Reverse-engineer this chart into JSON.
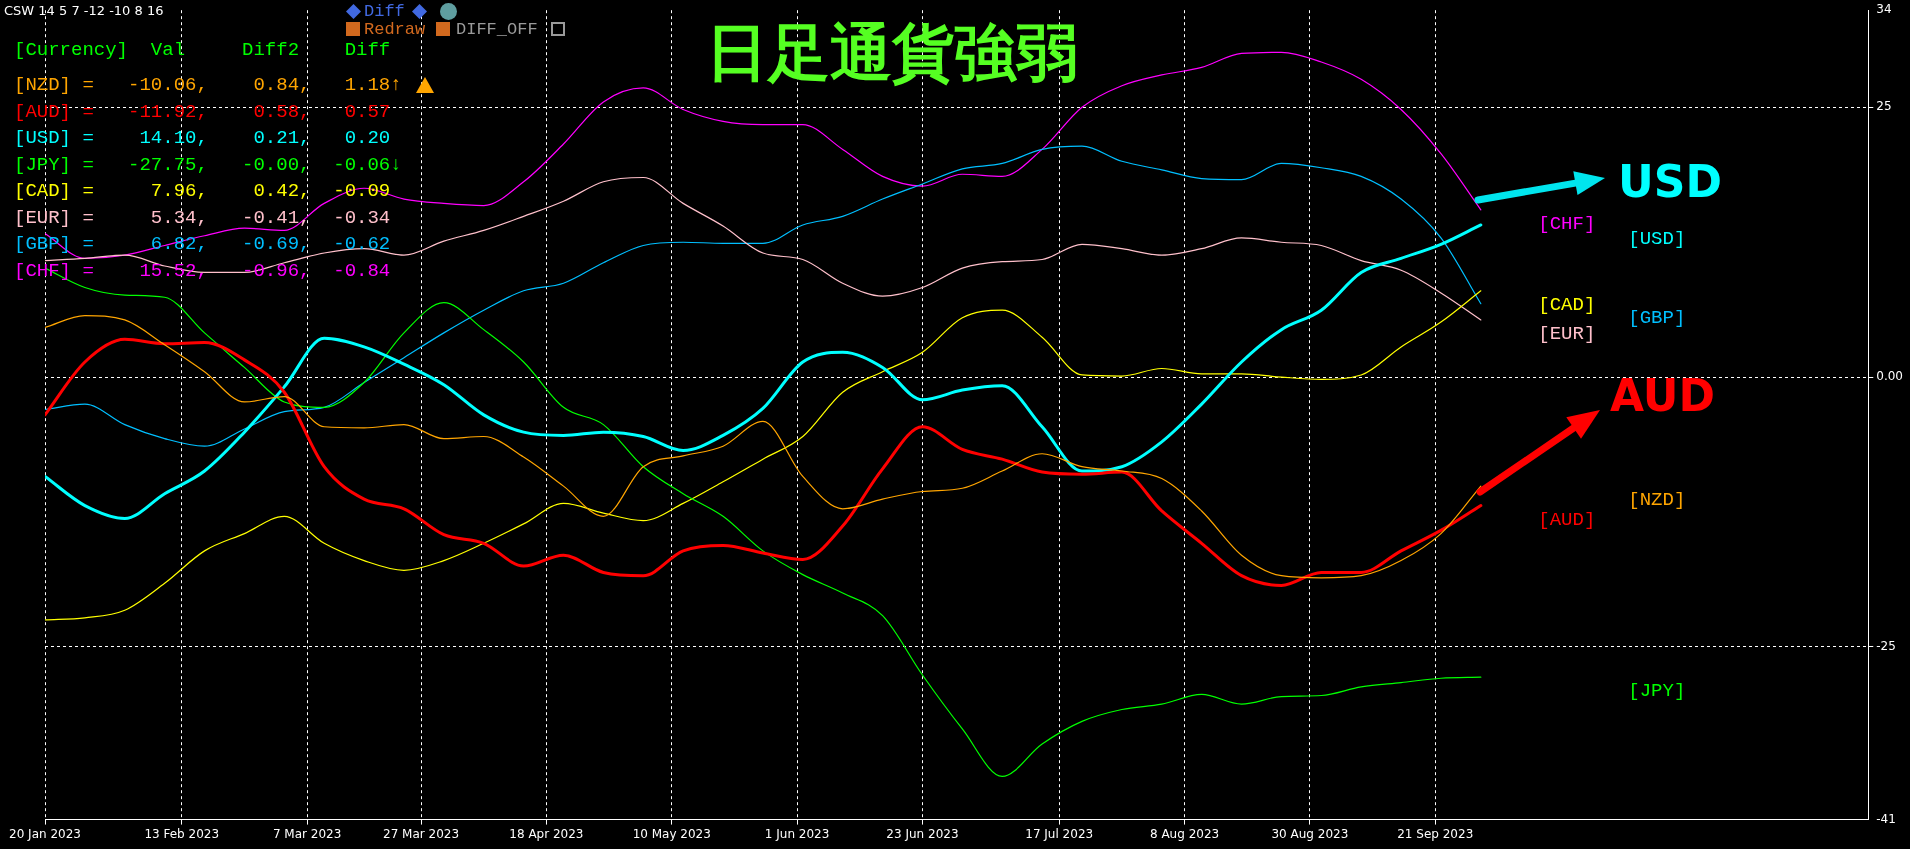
{
  "chart_data": {
    "type": "line",
    "title": "日足通貨強弱",
    "x": [
      "2023-01-20",
      "2023-01-27",
      "2023-02-03",
      "2023-02-10",
      "2023-02-17",
      "2023-02-24",
      "2023-03-03",
      "2023-03-10",
      "2023-03-17",
      "2023-03-24",
      "2023-03-31",
      "2023-04-07",
      "2023-04-14",
      "2023-04-21",
      "2023-04-28",
      "2023-05-05",
      "2023-05-12",
      "2023-05-19",
      "2023-05-26",
      "2023-06-02",
      "2023-06-09",
      "2023-06-16",
      "2023-06-23",
      "2023-06-30",
      "2023-07-07",
      "2023-07-14",
      "2023-07-21",
      "2023-07-28",
      "2023-08-04",
      "2023-08-11",
      "2023-08-18",
      "2023-08-25",
      "2023-09-01",
      "2023-09-08",
      "2023-09-15",
      "2023-09-22",
      "2023-09-29"
    ],
    "xlim": [
      "2023-01-20",
      "2023-12-06"
    ],
    "xticks": [
      {
        "value": "2023-01-20",
        "label": "20 Jan 2023"
      },
      {
        "value": "2023-02-13",
        "label": "13 Feb 2023"
      },
      {
        "value": "2023-03-07",
        "label": "7 Mar 2023"
      },
      {
        "value": "2023-03-27",
        "label": "27 Mar 2023"
      },
      {
        "value": "2023-04-18",
        "label": "18 Apr 2023"
      },
      {
        "value": "2023-05-10",
        "label": "10 May 2023"
      },
      {
        "value": "2023-06-01",
        "label": "1 Jun 2023"
      },
      {
        "value": "2023-06-23",
        "label": "23 Jun 2023"
      },
      {
        "value": "2023-07-17",
        "label": "17 Jul 2023"
      },
      {
        "value": "2023-08-08",
        "label": "8 Aug 2023"
      },
      {
        "value": "2023-08-30",
        "label": "30 Aug 2023"
      },
      {
        "value": "2023-09-21",
        "label": "21 Sep 2023"
      }
    ],
    "ylim": [
      -41,
      34
    ],
    "yticks": [
      -41,
      -25,
      {
        "value": 0,
        "label": "0.00"
      },
      25,
      34
    ],
    "grid": true,
    "legend": "right",
    "marker": "none",
    "line_style": "solid",
    "annotations": [
      "CSW 14 5 7 -12 -10 8 16",
      "[Currency]  Val     Diff2    Diff",
      "[NZD] =   -10.06,    0.84,   1.18↑",
      "[AUD] =   -11.92,    0.58,   0.57",
      "[USD] =    14.10,    0.21,   0.20",
      "[JPY] =   -27.75,   -0.00,  -0.06↓",
      "[CAD] =     7.96,    0.42,  -0.09",
      "[EUR] =     5.34,   -0.41,  -0.34",
      "[GBP] =     6.82,   -0.69,  -0.62",
      "[CHF] =    15.52,   -0.96,  -0.84",
      "Diff",
      "Redraw",
      "DIFF_OFF",
      "USD",
      "AUD"
    ],
    "series": [
      {
        "name": "[NZD]",
        "color": "#ffa500",
        "values": [
          4.6,
          5.7,
          5.3,
          3.0,
          0.5,
          -2.3,
          -1.8,
          -4.6,
          -4.7,
          -4.4,
          -5.7,
          -5.5,
          -7.4,
          -10.1,
          -12.9,
          -8.3,
          -7.3,
          -6.4,
          -4.1,
          -9.2,
          -12.2,
          -11.3,
          -10.6,
          -10.3,
          -8.7,
          -7.1,
          -8.3,
          -8.7,
          -9.4,
          -12.4,
          -16.5,
          -18.4,
          -18.6,
          -18.4,
          -17.0,
          -14.5,
          -10.1
        ]
      },
      {
        "name": "[AUD]",
        "color": "#ff0000",
        "values": [
          -3.5,
          1.4,
          3.5,
          3.1,
          3.2,
          1.6,
          -1.4,
          -8.3,
          -11.3,
          -12.2,
          -14.6,
          -15.4,
          -17.5,
          -16.5,
          -18.1,
          -18.4,
          -16.1,
          -15.6,
          -16.3,
          -16.9,
          -13.8,
          -8.5,
          -4.6,
          -6.7,
          -7.6,
          -8.8,
          -9.0,
          -8.8,
          -12.4,
          -15.4,
          -18.4,
          -19.3,
          -18.1,
          -18.1,
          -16.1,
          -14.2,
          -11.9
        ]
      },
      {
        "name": "[USD]",
        "color": "#00ffff",
        "values": [
          -9.2,
          -11.9,
          -13.1,
          -10.8,
          -8.7,
          -5.1,
          -0.9,
          3.6,
          2.8,
          1.2,
          -0.7,
          -3.5,
          -5.1,
          -5.4,
          -5.1,
          -5.5,
          -6.8,
          -5.4,
          -2.9,
          1.4,
          2.3,
          0.9,
          -2.1,
          -1.2,
          -0.8,
          -4.6,
          -8.7,
          -8.3,
          -6.0,
          -2.5,
          1.4,
          4.4,
          6.2,
          9.7,
          11.0,
          12.3,
          14.1
        ]
      },
      {
        "name": "[JPY]",
        "color": "#00ff00",
        "values": [
          10.1,
          8.3,
          7.6,
          7.4,
          4.1,
          0.9,
          -2.3,
          -2.8,
          -0.5,
          4.1,
          6.9,
          4.4,
          1.4,
          -2.8,
          -4.4,
          -8.3,
          -10.8,
          -12.9,
          -16.1,
          -18.3,
          -20.0,
          -22.1,
          -27.6,
          -32.6,
          -37.0,
          -34.0,
          -31.9,
          -30.8,
          -30.3,
          -29.4,
          -30.3,
          -29.6,
          -29.5,
          -28.7,
          -28.3,
          -27.9,
          -27.8
        ]
      },
      {
        "name": "[CAD]",
        "color": "#ffff00",
        "values": [
          -22.5,
          -22.3,
          -21.6,
          -19.1,
          -16.1,
          -14.5,
          -12.9,
          -15.4,
          -17.0,
          -17.9,
          -17.0,
          -15.4,
          -13.6,
          -11.7,
          -12.6,
          -13.3,
          -11.7,
          -9.7,
          -7.6,
          -5.5,
          -1.4,
          0.5,
          2.3,
          5.5,
          6.2,
          3.7,
          0.2,
          0.1,
          0.8,
          0.3,
          0.3,
          0.0,
          -0.2,
          0.2,
          2.8,
          5.1,
          8.0
        ]
      },
      {
        "name": "[EUR]",
        "color": "#ffc0cb",
        "values": [
          10.8,
          11.0,
          11.3,
          10.3,
          9.7,
          9.7,
          10.6,
          11.5,
          11.9,
          11.3,
          12.6,
          13.6,
          14.9,
          16.3,
          18.1,
          18.5,
          16.1,
          14.0,
          11.5,
          10.9,
          8.7,
          7.5,
          8.3,
          10.1,
          10.7,
          10.9,
          12.3,
          11.9,
          11.3,
          11.9,
          12.9,
          12.5,
          12.2,
          10.8,
          9.9,
          7.8,
          5.3
        ]
      },
      {
        "name": "[GBP]",
        "color": "#00bfff",
        "values": [
          -3.0,
          -2.5,
          -4.4,
          -5.7,
          -6.4,
          -4.8,
          -3.2,
          -2.8,
          -0.5,
          1.8,
          4.1,
          6.2,
          8.0,
          8.7,
          10.6,
          12.2,
          12.5,
          12.4,
          12.4,
          14.1,
          14.9,
          16.5,
          17.9,
          19.3,
          19.8,
          21.1,
          21.4,
          20.0,
          19.2,
          18.4,
          18.3,
          19.8,
          19.4,
          18.6,
          16.5,
          12.9,
          6.8
        ]
      },
      {
        "name": "[CHF]",
        "color": "#ff00ff",
        "values": [
          13.3,
          11.0,
          11.3,
          12.2,
          13.1,
          13.8,
          13.6,
          16.1,
          17.5,
          16.5,
          16.1,
          15.9,
          18.1,
          21.6,
          25.5,
          26.8,
          24.8,
          23.7,
          23.4,
          23.4,
          21.1,
          18.6,
          17.7,
          18.8,
          18.6,
          21.1,
          25.0,
          27.0,
          28.0,
          28.7,
          30.0,
          30.1,
          29.2,
          27.6,
          24.8,
          20.7,
          15.5
        ]
      }
    ]
  }
}
